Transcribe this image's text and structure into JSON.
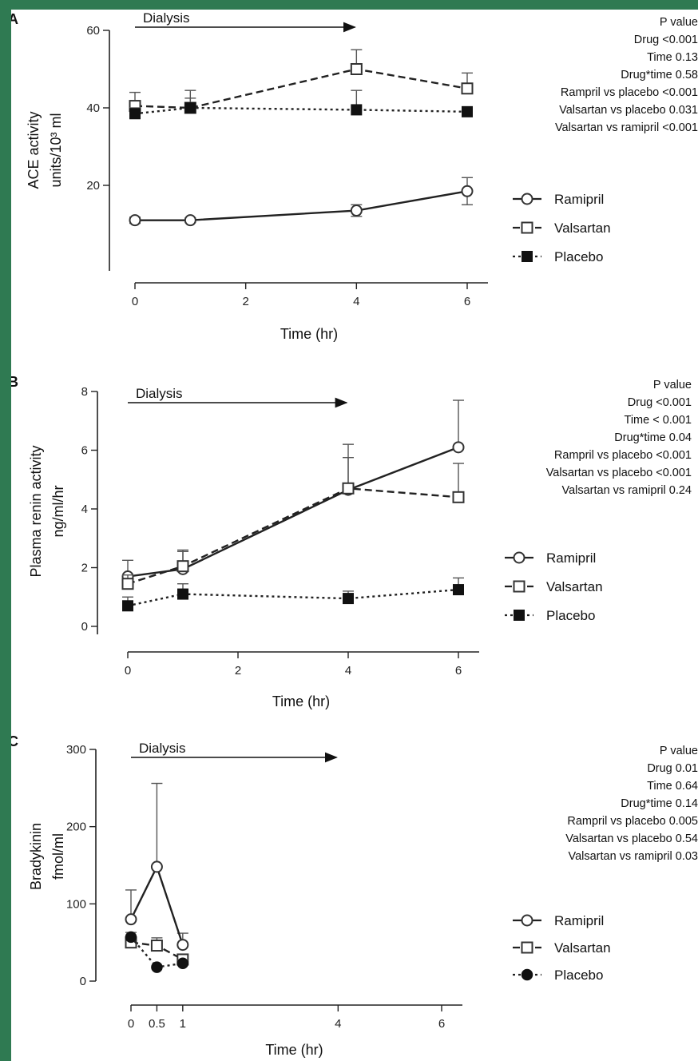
{
  "chart_data": [
    {
      "panel": "A",
      "type": "line",
      "xlabel": "Time (hr)",
      "ylabel_line1": "ACE activity",
      "ylabel_line2": "units/10³ ml",
      "xlim": [
        0,
        6.5
      ],
      "ylim": [
        0,
        60
      ],
      "x_ticks": [
        0,
        2,
        4,
        6
      ],
      "y_ticks": [
        20,
        40,
        60
      ],
      "dialysis": {
        "label": "Dialysis",
        "from": 0,
        "to": 4
      },
      "series": [
        {
          "name": "Ramipril",
          "marker": "circle-open",
          "dash": "solid",
          "x": [
            0,
            1,
            4,
            6
          ],
          "y": [
            11,
            11,
            13.5,
            18.5
          ],
          "err": [
            0.8,
            0.6,
            1.5,
            3.5
          ]
        },
        {
          "name": "Valsartan",
          "marker": "square-open",
          "dash": "dashed",
          "x": [
            0,
            1,
            4,
            6
          ],
          "y": [
            40.5,
            40,
            50,
            45
          ],
          "err": [
            3.5,
            4.5,
            5,
            4
          ]
        },
        {
          "name": "Placebo",
          "marker": "square-filled",
          "dash": "dotted",
          "x": [
            0,
            1,
            4,
            6
          ],
          "y": [
            38.5,
            40,
            39.5,
            39
          ],
          "err": [
            1.5,
            2.5,
            5,
            1
          ]
        }
      ],
      "pvalues_title": "P value",
      "pvalues": [
        "Drug <0.001",
        "Time   0.13",
        "Drug*time   0.58",
        "Rampril vs placebo <0.001",
        "Valsartan vs placebo 0.031",
        "Valsartan vs ramipril <0.001"
      ]
    },
    {
      "panel": "B",
      "type": "line",
      "xlabel": "Time (hr)",
      "ylabel_line1": "Plasma renin activity",
      "ylabel_line2": "ng/ml/hr",
      "xlim": [
        0,
        6.5
      ],
      "ylim": [
        0,
        8
      ],
      "x_ticks": [
        0,
        2,
        4,
        6
      ],
      "y_ticks": [
        0,
        2,
        4,
        6,
        8
      ],
      "dialysis": {
        "label": "Dialysis",
        "from": 0,
        "to": 4
      },
      "series": [
        {
          "name": "Ramipril",
          "marker": "circle-open",
          "dash": "solid",
          "x": [
            0,
            1,
            4,
            6
          ],
          "y": [
            1.7,
            1.95,
            4.65,
            6.1
          ],
          "err": [
            0.55,
            0.65,
            1.55,
            1.6
          ]
        },
        {
          "name": "Valsartan",
          "marker": "square-open",
          "dash": "dashed",
          "x": [
            0,
            1,
            4,
            6
          ],
          "y": [
            1.45,
            2.05,
            4.7,
            4.4
          ],
          "err": [
            0.3,
            0.5,
            1.05,
            1.15
          ]
        },
        {
          "name": "Placebo",
          "marker": "square-filled",
          "dash": "dotted",
          "x": [
            0,
            1,
            4,
            6
          ],
          "y": [
            0.7,
            1.1,
            0.95,
            1.25
          ],
          "err": [
            0.3,
            0.35,
            0.25,
            0.4
          ]
        }
      ],
      "pvalues_title": "P value",
      "pvalues": [
        "Drug <0.001",
        "Time < 0.001",
        "Drug*time    0.04",
        "Rampril vs placebo <0.001",
        "Valsartan vs placebo <0.001",
        "Valsartan vs ramipril 0.24"
      ]
    },
    {
      "panel": "C",
      "type": "line",
      "xlabel": "Time (hr)",
      "ylabel_line1": "Bradykinin",
      "ylabel_line2": "fmol/ml",
      "xlim": [
        0,
        6.5
      ],
      "ylim": [
        0,
        300
      ],
      "x_ticks": [
        0,
        0.5,
        1,
        4,
        6
      ],
      "x_tick_labels": [
        "0",
        "0.5",
        "1",
        "4",
        "6"
      ],
      "y_ticks": [
        0,
        100,
        200,
        300
      ],
      "dialysis": {
        "label": "Dialysis",
        "from": 0,
        "to": 4
      },
      "series": [
        {
          "name": "Ramipril",
          "marker": "circle-open",
          "dash": "solid",
          "x": [
            0,
            0.5,
            1
          ],
          "y": [
            80,
            148,
            47
          ],
          "err": [
            38,
            108,
            15
          ]
        },
        {
          "name": "Valsartan",
          "marker": "square-open",
          "dash": "dashed",
          "x": [
            0,
            0.5,
            1
          ],
          "y": [
            50,
            46,
            28
          ],
          "err": [
            8,
            10,
            4
          ]
        },
        {
          "name": "Placebo",
          "marker": "circle-filled",
          "dash": "dotted",
          "x": [
            0,
            0.5,
            1
          ],
          "y": [
            57,
            18,
            23
          ],
          "err": [
            6,
            0,
            4
          ]
        }
      ],
      "pvalues_title": "P value",
      "pvalues": [
        "Drug   0.01",
        "Time   0.64",
        "Drug*time   0.14",
        "Rampril vs placebo  0.005",
        "Valsartan vs placebo   0.54",
        "Valsartan vs ramipril   0.03"
      ]
    }
  ]
}
